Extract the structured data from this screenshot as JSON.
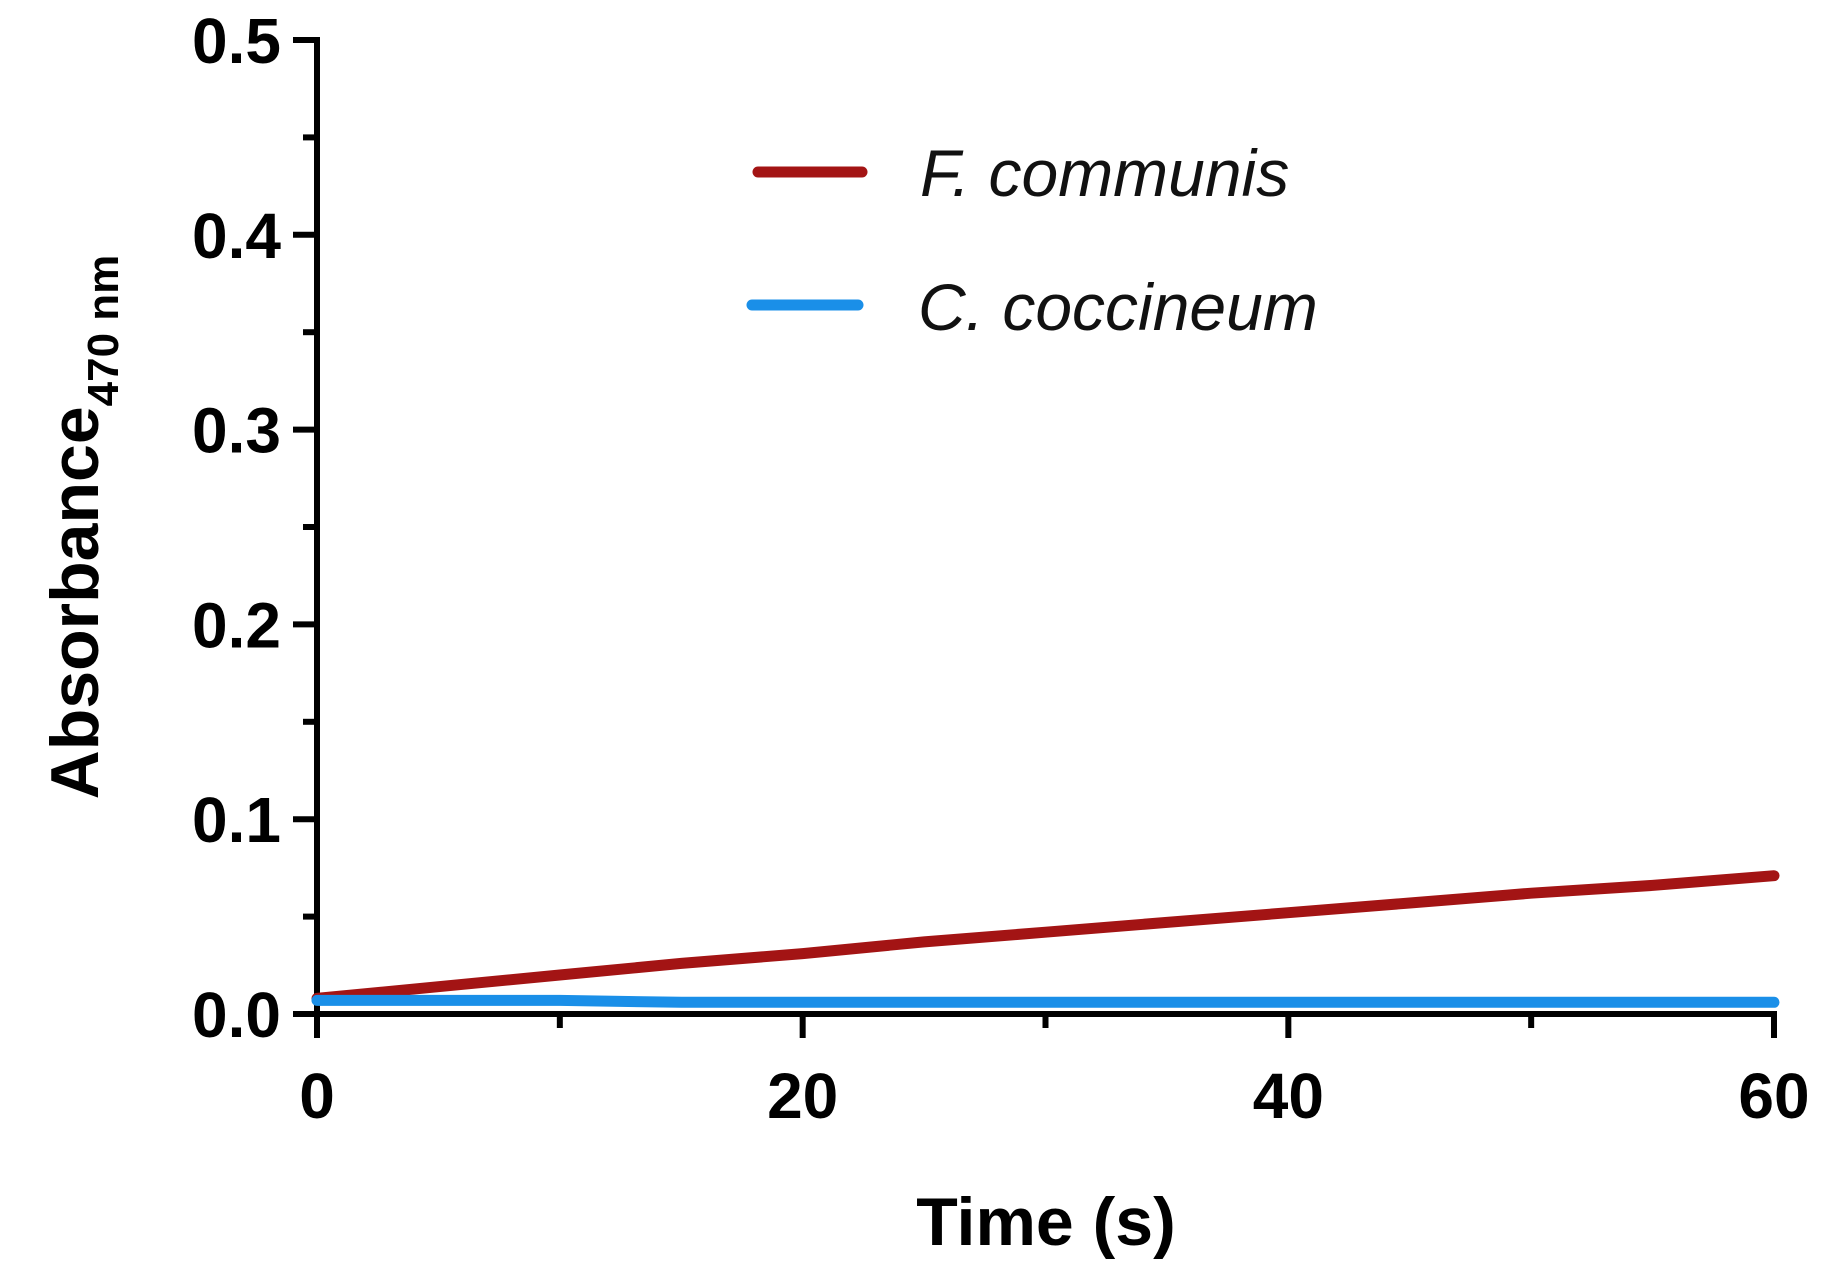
{
  "chart_data": {
    "type": "line",
    "title": "",
    "xlabel": "Time (s)",
    "ylabel_main": "Absorbance",
    "ylabel_sub": "470 nm",
    "xlim": [
      0,
      60
    ],
    "ylim": [
      0,
      0.5
    ],
    "x_major_ticks": [
      0,
      20,
      40,
      60
    ],
    "x_minor_ticks": [
      10,
      30,
      50
    ],
    "x_tick_labels": [
      "0",
      "20",
      "40",
      "60"
    ],
    "y_major_ticks": [
      0,
      0.1,
      0.2,
      0.3,
      0.4,
      0.5
    ],
    "y_minor_ticks": [
      0.05,
      0.15,
      0.25,
      0.35,
      0.45
    ],
    "y_tick_labels": [
      "0.0",
      "0.1",
      "0.2",
      "0.3",
      "0.4",
      "0.5"
    ],
    "grid": false,
    "legend_position": "top-center",
    "series": [
      {
        "name": "F. communis",
        "color": "#a31414",
        "x": [
          0,
          5,
          10,
          15,
          20,
          25,
          30,
          35,
          40,
          45,
          50,
          55,
          60
        ],
        "y": [
          0.008,
          0.014,
          0.02,
          0.026,
          0.031,
          0.037,
          0.042,
          0.047,
          0.052,
          0.057,
          0.062,
          0.066,
          0.071
        ]
      },
      {
        "name": "C. coccineum",
        "color": "#1a8fe8",
        "x": [
          0,
          5,
          10,
          15,
          20,
          25,
          30,
          35,
          40,
          45,
          50,
          55,
          60
        ],
        "y": [
          0.007,
          0.007,
          0.007,
          0.006,
          0.006,
          0.006,
          0.006,
          0.006,
          0.006,
          0.006,
          0.006,
          0.006,
          0.006
        ]
      }
    ]
  }
}
